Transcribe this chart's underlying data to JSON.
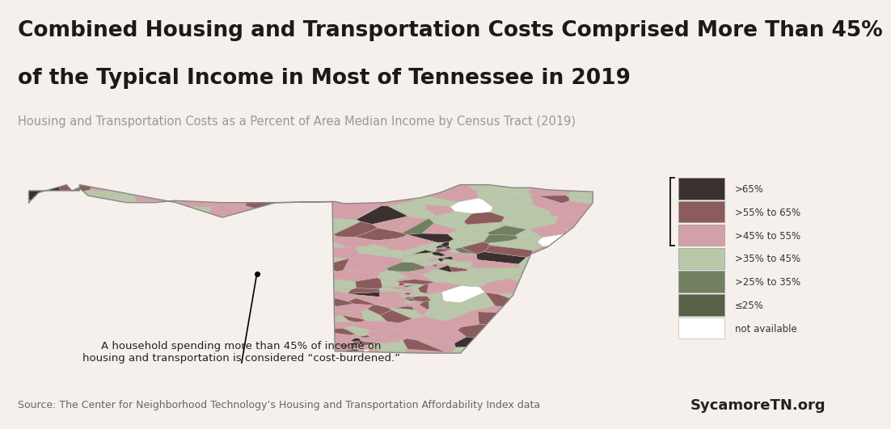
{
  "title_line1": "Combined Housing and Transportation Costs Comprised More Than 45%",
  "title_line2": "of the Typical Income in Most of Tennessee in 2019",
  "subtitle": "Housing and Transportation Costs as a Percent of Area Median Income by Census Tract (2019)",
  "source_text": "Source: The Center for Neighborhood Technology’s Housing and Transportation Affordability Index data",
  "brand_text": "SycamoreTN.org",
  "annotation_text": "A household spending more than 45% of income on\nhousing and transportation is considered “cost-burdened.”",
  "legend_labels": [
    ">65%",
    ">55% to 65%",
    ">45% to 55%",
    ">35% to 45%",
    ">25% to 35%",
    "≤25%",
    "not available"
  ],
  "legend_colors": [
    "#3a3030",
    "#8c5c5c",
    "#d4a0a8",
    "#b8c8a8",
    "#708060",
    "#586048",
    "#ffffff"
  ],
  "background_color": "#f5f0eb",
  "title_fontsize": 19,
  "subtitle_fontsize": 10.5,
  "source_fontsize": 9,
  "brand_fontsize": 13,
  "annotation_fontsize": 9.5
}
